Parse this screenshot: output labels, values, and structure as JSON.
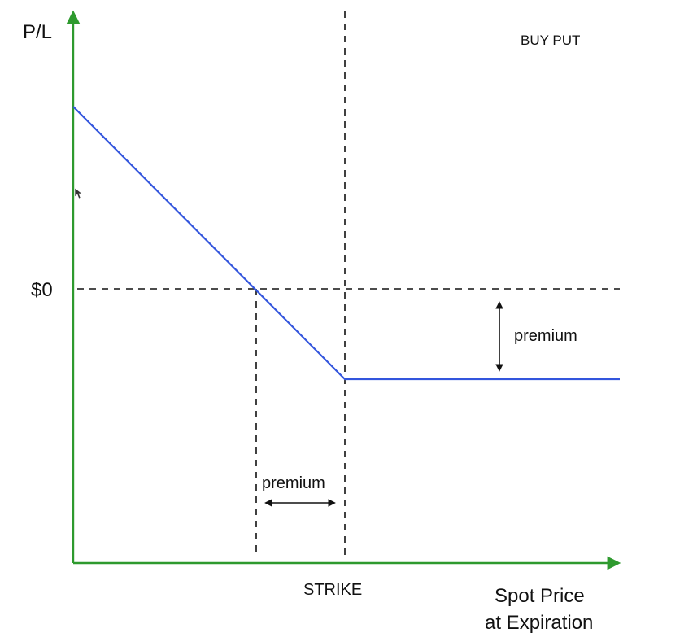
{
  "title": "BUY PUT",
  "y_axis_label": "P/L",
  "x_axis_label_line1": "Spot Price",
  "x_axis_label_line2": "at Expiration",
  "zero_label": "$0",
  "strike_label": "STRIKE",
  "premium_vertical_label": "premium",
  "premium_horizontal_label": "premium",
  "colors": {
    "axis": "#2e9a2e",
    "payoff_line": "#3355dd",
    "guides": "#111111"
  }
}
